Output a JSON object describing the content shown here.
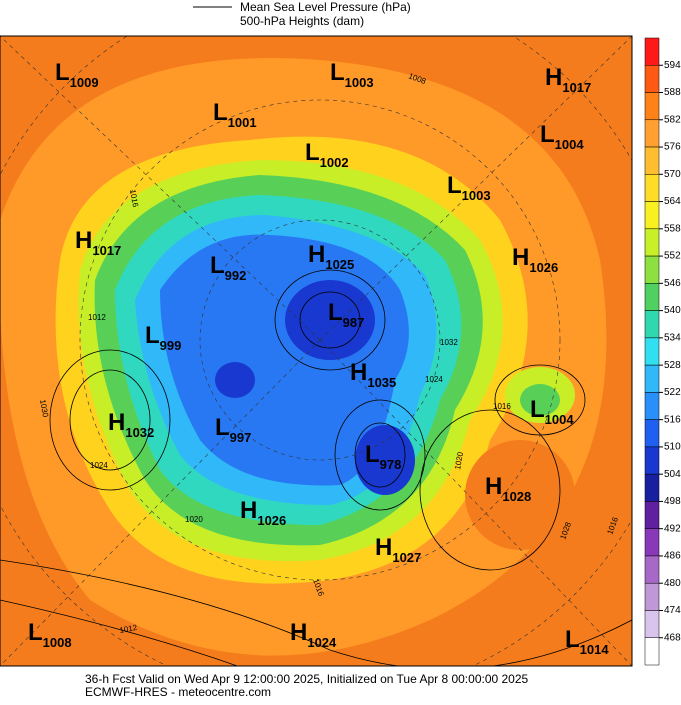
{
  "header": {
    "legend": [
      "Mean Sea Level Pressure (hPa)",
      "500-hPa Heights (dam)"
    ]
  },
  "centers": [
    {
      "letter": "L",
      "value": "1009"
    },
    {
      "letter": "L",
      "value": "1003"
    },
    {
      "letter": "H",
      "value": "1017"
    },
    {
      "letter": "L",
      "value": "1001"
    },
    {
      "letter": "L",
      "value": "1004"
    },
    {
      "letter": "L",
      "value": "1002"
    },
    {
      "letter": "L",
      "value": "1003"
    },
    {
      "letter": "H",
      "value": "1017"
    },
    {
      "letter": "L",
      "value": "992"
    },
    {
      "letter": "H",
      "value": "1025"
    },
    {
      "letter": "H",
      "value": "1026"
    },
    {
      "letter": "L",
      "value": "987"
    },
    {
      "letter": "L",
      "value": "999"
    },
    {
      "letter": "H",
      "value": "1035"
    },
    {
      "letter": "L",
      "value": "1004"
    },
    {
      "letter": "H",
      "value": "1032"
    },
    {
      "letter": "L",
      "value": "997"
    },
    {
      "letter": "L",
      "value": "978"
    },
    {
      "letter": "H",
      "value": "1028"
    },
    {
      "letter": "H",
      "value": "1026"
    },
    {
      "letter": "H",
      "value": "1027"
    },
    {
      "letter": "L",
      "value": "1008"
    },
    {
      "letter": "H",
      "value": "1024"
    },
    {
      "letter": "L",
      "value": "1014"
    }
  ],
  "contour_labels": [
    "1016",
    "1012",
    "1030",
    "1024",
    "1020",
    "1016",
    "1012",
    "1008",
    "1032",
    "1024",
    "1016",
    "1020",
    "1028",
    "1016"
  ],
  "colorbar": {
    "ticks": [
      594,
      588,
      582,
      576,
      570,
      564,
      558,
      552,
      546,
      540,
      534,
      528,
      522,
      516,
      510,
      504,
      498,
      492,
      486,
      480,
      474,
      468
    ],
    "colors": [
      "#ff1a1a",
      "#ff5a14",
      "#ff8218",
      "#ffa030",
      "#ffbe30",
      "#ffdc28",
      "#f8f020",
      "#c8f028",
      "#8ce040",
      "#50d060",
      "#30d8b0",
      "#30e0f0",
      "#30b8f8",
      "#2890f8",
      "#2060f0",
      "#1838d0",
      "#1820a0",
      "#6020a0",
      "#8838b8",
      "#a868c8",
      "#c098d8",
      "#d8c4ec",
      "#ffffff"
    ]
  },
  "footer": {
    "line1": "36-h Fcst Valid on Wed Apr  9 12:00:00 2025, Initialized on Tue Apr  8 00:00:00 2025",
    "line2": "ECMWF-HRES  - meteocentre.com"
  }
}
